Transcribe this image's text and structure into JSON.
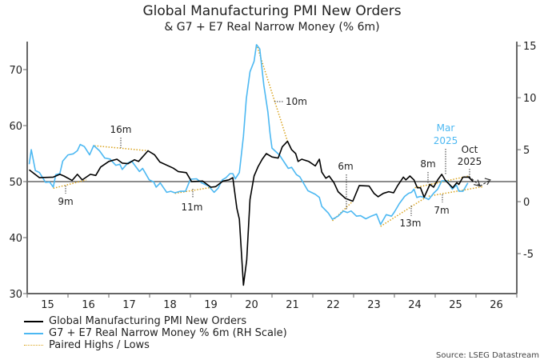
{
  "chart_data": {
    "type": "line",
    "title": "Global Manufacturing PMI New Orders",
    "subtitle": "& G7 + E7 Real Narrow Money (% 6m)",
    "source": "Source: LSEG Datastream",
    "x_range": [
      2015,
      2027
    ],
    "x_tick_labels": [
      "15",
      "16",
      "17",
      "18",
      "19",
      "20",
      "21",
      "22",
      "23",
      "24",
      "25",
      "26"
    ],
    "y_left": {
      "range": [
        30,
        75
      ],
      "ticks": [
        30,
        40,
        50,
        60,
        70
      ],
      "reference_line": 50
    },
    "y_right": {
      "range": [
        -8.85,
        15.4
      ],
      "ticks": [
        -5,
        0,
        5,
        10,
        15
      ]
    },
    "grid": false,
    "legend_placement": "bottom-left",
    "series": [
      {
        "name": "Global Manufacturing PMI New Orders",
        "axis": "left",
        "color": "#000000",
        "x": [
          2015.05,
          2015.3,
          2015.64,
          2015.8,
          2015.9,
          2016.1,
          2016.23,
          2016.35,
          2016.55,
          2016.68,
          2016.8,
          2017.0,
          2017.2,
          2017.33,
          2017.47,
          2017.63,
          2017.73,
          2017.96,
          2018.12,
          2018.25,
          2018.58,
          2018.7,
          2018.9,
          2019.03,
          2019.3,
          2019.5,
          2019.62,
          2019.8,
          2019.94,
          2020.04,
          2020.14,
          2020.2,
          2020.3,
          2020.38,
          2020.46,
          2020.56,
          2020.66,
          2020.76,
          2020.86,
          2021.0,
          2021.15,
          2021.25,
          2021.38,
          2021.48,
          2021.58,
          2021.64,
          2021.73,
          2021.9,
          2022.06,
          2022.16,
          2022.22,
          2022.32,
          2022.4,
          2022.52,
          2022.62,
          2022.8,
          2022.98,
          2023.14,
          2023.38,
          2023.5,
          2023.6,
          2023.73,
          2023.86,
          2023.98,
          2024.08,
          2024.22,
          2024.28,
          2024.38,
          2024.48,
          2024.56,
          2024.64,
          2024.73,
          2024.87,
          2024.96,
          2025.06,
          2025.16,
          2025.25,
          2025.43,
          2025.53,
          2025.58,
          2025.68,
          2025.82,
          2025.93
        ],
        "y": [
          52.1,
          50.7,
          50.8,
          51.3,
          51.0,
          50.2,
          51.3,
          50.3,
          51.3,
          51.1,
          52.6,
          53.6,
          54.0,
          53.3,
          53.2,
          53.9,
          53.6,
          55.5,
          54.8,
          53.5,
          52.4,
          51.8,
          51.6,
          50.0,
          50.1,
          49.0,
          49.1,
          50.1,
          50.3,
          50.7,
          45.2,
          43.3,
          31.5,
          36.0,
          46.8,
          51.0,
          52.7,
          54.0,
          55.0,
          54.4,
          54.2,
          56.2,
          57.2,
          55.7,
          55.0,
          53.6,
          54.0,
          53.6,
          52.8,
          54.0,
          51.7,
          50.6,
          51.0,
          49.8,
          48.2,
          47.0,
          46.5,
          49.3,
          49.2,
          47.9,
          47.3,
          47.9,
          48.2,
          48.0,
          49.3,
          50.8,
          50.3,
          51.0,
          50.3,
          48.9,
          48.9,
          47.2,
          49.5,
          49.0,
          50.3,
          51.3,
          50.2,
          48.9,
          49.8,
          49.5,
          50.8,
          50.8,
          50.0
        ]
      },
      {
        "name": "G7 + E7 Real Narrow Money % 6m (RH Scale)",
        "axis": "right",
        "color": "#4cb8f2",
        "x": [
          2015.05,
          2015.1,
          2015.2,
          2015.3,
          2015.45,
          2015.55,
          2015.64,
          2015.7,
          2015.8,
          2015.87,
          2016.0,
          2016.13,
          2016.23,
          2016.3,
          2016.4,
          2016.53,
          2016.63,
          2016.77,
          2016.9,
          2017.03,
          2017.17,
          2017.27,
          2017.33,
          2017.46,
          2017.56,
          2017.75,
          2017.83,
          2017.99,
          2018.1,
          2018.16,
          2018.26,
          2018.42,
          2018.52,
          2018.62,
          2018.75,
          2018.88,
          2019.0,
          2019.15,
          2019.28,
          2019.45,
          2019.58,
          2019.68,
          2019.78,
          2019.87,
          2019.97,
          2020.04,
          2020.1,
          2020.2,
          2020.3,
          2020.37,
          2020.46,
          2020.56,
          2020.62,
          2020.7,
          2020.8,
          2020.9,
          2020.95,
          2021.0,
          2021.18,
          2021.4,
          2021.48,
          2021.6,
          2021.68,
          2021.88,
          2022.06,
          2022.16,
          2022.22,
          2022.38,
          2022.48,
          2022.62,
          2022.75,
          2022.85,
          2022.94,
          2023.07,
          2023.17,
          2023.3,
          2023.43,
          2023.56,
          2023.66,
          2023.8,
          2023.93,
          2024.0,
          2024.12,
          2024.25,
          2024.35,
          2024.42,
          2024.48,
          2024.55,
          2024.64,
          2024.74,
          2024.84,
          2024.96,
          2025.06,
          2025.16,
          2025.29,
          2025.42,
          2025.52,
          2025.58,
          2025.68,
          2025.8
        ],
        "y": [
          3.6,
          5.0,
          3.0,
          2.8,
          1.85,
          1.9,
          1.4,
          2.6,
          2.7,
          3.9,
          4.5,
          4.6,
          4.9,
          5.5,
          5.3,
          4.5,
          5.4,
          4.9,
          4.2,
          4.1,
          3.5,
          3.6,
          3.1,
          3.7,
          3.9,
          2.9,
          3.2,
          2.1,
          1.9,
          1.4,
          1.8,
          0.9,
          1.0,
          0.85,
          1.0,
          1.0,
          2.15,
          2.2,
          1.8,
          1.5,
          0.9,
          1.3,
          2.1,
          2.3,
          2.7,
          2.7,
          2.2,
          2.8,
          6.3,
          9.9,
          12.5,
          13.5,
          15.1,
          14.7,
          11.2,
          8.6,
          6.6,
          5.15,
          4.5,
          3.2,
          3.3,
          2.6,
          2.4,
          1.05,
          0.7,
          0.4,
          -0.45,
          -1.1,
          -1.7,
          -1.4,
          -0.9,
          -1.05,
          -0.9,
          -1.4,
          -1.35,
          -1.65,
          -1.4,
          -1.2,
          -2.2,
          -1.25,
          -1.4,
          -1.0,
          -0.2,
          0.5,
          0.8,
          0.9,
          1.2,
          0.4,
          0.5,
          0.4,
          0.2,
          0.8,
          1.2,
          2.0,
          2.0,
          1.2,
          1.6,
          1.0,
          1.0,
          1.8
        ]
      },
      {
        "name": "Paired Highs / Lows",
        "color": "#d9a21b",
        "style": "dotted",
        "segments_left_scale": [
          {
            "label": "9m",
            "from": [
              2015.64,
              48.8
            ],
            "to": [
              2016.45,
              50.3
            ]
          },
          {
            "label": "16m",
            "from": [
              2016.65,
              56.4
            ],
            "to": [
              2017.98,
              55.5
            ]
          },
          {
            "label": "11m",
            "from": [
              2018.62,
              47.9
            ],
            "to": [
              2019.62,
              49.1
            ]
          },
          {
            "label": "10m",
            "from": [
              2020.62,
              74.5
            ],
            "to": [
              2021.38,
              57.2
            ]
          },
          {
            "label": "6m",
            "from": [
              2022.48,
              43.0
            ],
            "to": [
              2022.98,
              46.5
            ]
          },
          {
            "label": "13m",
            "from": [
              2023.66,
              42.0
            ],
            "to": [
              2024.73,
              47.0
            ]
          },
          {
            "label": "8m",
            "from": [
              2024.5,
              48.9
            ],
            "to": [
              2025.82,
              51.0
            ]
          },
          {
            "label": "7m",
            "from": [
              2024.84,
              47.4
            ],
            "to": [
              2026.17,
              49.1
            ]
          }
        ]
      }
    ],
    "annotations": {
      "lag_9m": "9m",
      "lag_16m": "16m",
      "lag_11m": "11m",
      "lag_10m": "10m",
      "lag_6m": "6m",
      "lag_13m": "13m",
      "lag_8m": "8m",
      "lag_7m": "7m",
      "mar_line1": "Mar",
      "mar_line2": "2025",
      "oct_line1": "Oct",
      "oct_line2": "2025"
    },
    "projection_arrows": {
      "color": "#333333",
      "points_left_scale": [
        [
          2025.82,
          51.0
        ],
        [
          2026.1,
          49.2
        ],
        [
          2026.35,
          50.3
        ]
      ]
    }
  }
}
